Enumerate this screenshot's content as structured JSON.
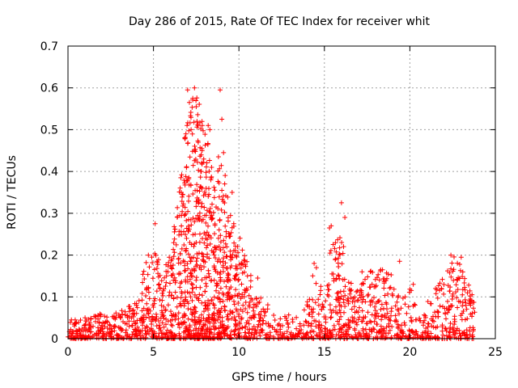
{
  "chart_data": {
    "type": "scatter",
    "title": "Day 286 of 2015, Rate Of TEC Index for receiver whit",
    "xlabel": "GPS time / hours",
    "ylabel": "ROTI / TECUs",
    "xlim": [
      0,
      25
    ],
    "ylim": [
      0,
      0.7
    ],
    "xticks": [
      0,
      5,
      10,
      15,
      20,
      25
    ],
    "yticks": [
      0,
      0.1,
      0.2,
      0.3,
      0.4,
      0.5,
      0.6,
      0.7
    ],
    "grid": true,
    "marker": "+",
    "color": "#ff0000",
    "envelope": {
      "description": "approximate upper envelope and density of ROTI points vs GPS time",
      "x": [
        0.0,
        0.5,
        1.0,
        1.5,
        2.0,
        2.5,
        3.0,
        3.5,
        4.0,
        4.5,
        5.0,
        5.5,
        6.0,
        6.5,
        7.0,
        7.5,
        8.0,
        8.5,
        9.0,
        9.5,
        10.0,
        10.5,
        11.0,
        11.5,
        12.0,
        12.5,
        13.0,
        13.5,
        14.0,
        14.5,
        15.0,
        15.5,
        16.0,
        16.5,
        17.0,
        17.5,
        18.0,
        18.5,
        19.0,
        19.5,
        20.0,
        20.5,
        21.0,
        21.5,
        22.0,
        22.5,
        23.0,
        23.5,
        23.8
      ],
      "upper": [
        0.04,
        0.05,
        0.04,
        0.06,
        0.06,
        0.05,
        0.07,
        0.08,
        0.1,
        0.18,
        0.22,
        0.17,
        0.2,
        0.38,
        0.55,
        0.6,
        0.5,
        0.42,
        0.45,
        0.3,
        0.25,
        0.18,
        0.15,
        0.09,
        0.07,
        0.05,
        0.06,
        0.05,
        0.1,
        0.18,
        0.1,
        0.29,
        0.25,
        0.15,
        0.12,
        0.15,
        0.18,
        0.17,
        0.15,
        0.1,
        0.13,
        0.07,
        0.09,
        0.12,
        0.15,
        0.2,
        0.19,
        0.12,
        0.11
      ],
      "lower": [
        0.0,
        0.0,
        0.0,
        0.0,
        0.0,
        0.0,
        0.0,
        0.0,
        0.0,
        0.0,
        0.0,
        0.0,
        0.0,
        0.0,
        0.0,
        0.0,
        0.0,
        0.0,
        0.0,
        0.0,
        0.0,
        0.0,
        0.0,
        0.0,
        0.0,
        0.0,
        0.0,
        0.0,
        0.0,
        0.0,
        0.0,
        0.0,
        0.0,
        0.0,
        0.0,
        0.0,
        0.0,
        0.0,
        0.0,
        0.0,
        0.0,
        0.0,
        0.0,
        0.0,
        0.0,
        0.0,
        0.0,
        0.0,
        0.0
      ],
      "density": [
        30,
        30,
        30,
        30,
        30,
        30,
        30,
        30,
        35,
        45,
        55,
        45,
        55,
        90,
        120,
        130,
        120,
        110,
        110,
        80,
        60,
        45,
        35,
        25,
        20,
        20,
        20,
        20,
        25,
        35,
        30,
        60,
        55,
        40,
        35,
        40,
        45,
        40,
        35,
        25,
        25,
        20,
        25,
        30,
        35,
        45,
        45,
        30,
        20
      ]
    },
    "outliers": [
      {
        "x": 7.0,
        "y": 0.595
      },
      {
        "x": 7.4,
        "y": 0.6
      },
      {
        "x": 8.9,
        "y": 0.595
      },
      {
        "x": 7.1,
        "y": 0.565
      },
      {
        "x": 7.3,
        "y": 0.575
      },
      {
        "x": 7.5,
        "y": 0.555
      },
      {
        "x": 7.6,
        "y": 0.51
      },
      {
        "x": 8.3,
        "y": 0.5
      },
      {
        "x": 8.2,
        "y": 0.51
      },
      {
        "x": 9.0,
        "y": 0.525
      },
      {
        "x": 6.9,
        "y": 0.49
      },
      {
        "x": 7.2,
        "y": 0.5
      },
      {
        "x": 7.4,
        "y": 0.45
      },
      {
        "x": 8.8,
        "y": 0.435
      },
      {
        "x": 9.1,
        "y": 0.445
      },
      {
        "x": 8.4,
        "y": 0.41
      },
      {
        "x": 6.6,
        "y": 0.385
      },
      {
        "x": 7.8,
        "y": 0.4
      },
      {
        "x": 9.6,
        "y": 0.35
      },
      {
        "x": 5.1,
        "y": 0.275
      },
      {
        "x": 16.0,
        "y": 0.325
      },
      {
        "x": 16.2,
        "y": 0.29
      },
      {
        "x": 15.3,
        "y": 0.265
      },
      {
        "x": 15.4,
        "y": 0.27
      },
      {
        "x": 14.4,
        "y": 0.18
      },
      {
        "x": 11.1,
        "y": 0.145
      },
      {
        "x": 19.4,
        "y": 0.185
      },
      {
        "x": 18.4,
        "y": 0.165
      },
      {
        "x": 17.2,
        "y": 0.16
      },
      {
        "x": 22.4,
        "y": 0.2
      },
      {
        "x": 23.0,
        "y": 0.195
      },
      {
        "x": 20.2,
        "y": 0.13
      },
      {
        "x": 21.5,
        "y": 0.12
      },
      {
        "x": 1.0,
        "y": 0.05
      },
      {
        "x": 0.2,
        "y": 0.045
      },
      {
        "x": 4.7,
        "y": 0.2
      }
    ]
  }
}
